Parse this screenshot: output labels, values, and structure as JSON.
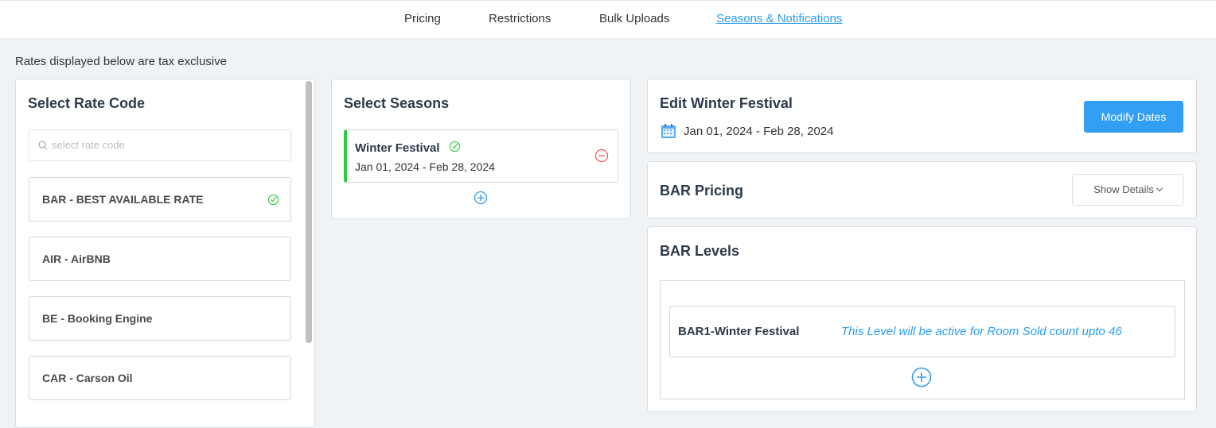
{
  "nav": {
    "tabs": [
      "Pricing",
      "Restrictions",
      "Bulk Uploads",
      "Seasons & Notifications"
    ],
    "active": "Seasons & Notifications"
  },
  "note": "Rates displayed below are tax exclusive",
  "rate_codes": {
    "title": "Select Rate Code",
    "search_placeholder": "select rate code",
    "items": [
      "BAR - BEST AVAILABLE RATE",
      "AIR - AirBNB",
      "BE - Booking Engine",
      "CAR - Carson Oil"
    ],
    "selected": "BAR - BEST AVAILABLE RATE"
  },
  "seasons": {
    "title": "Select Seasons",
    "items": [
      {
        "name": "Winter Festival",
        "dates": "Jan 01, 2024 - Feb 28, 2024"
      }
    ]
  },
  "edit": {
    "title": "Edit Winter Festival",
    "dates": "Jan 01, 2024 - Feb 28, 2024",
    "modify_label": "Modify Dates"
  },
  "pricing": {
    "title": "BAR Pricing",
    "show_details_label": "Show Details"
  },
  "levels": {
    "title": "BAR Levels",
    "items": [
      {
        "name": "BAR1-Winter Festival",
        "description": "This Level will be active for Room Sold count upto 46"
      }
    ]
  },
  "colors": {
    "accent": "#329ff5",
    "success": "#2ecc40",
    "danger": "#e85a5a"
  }
}
